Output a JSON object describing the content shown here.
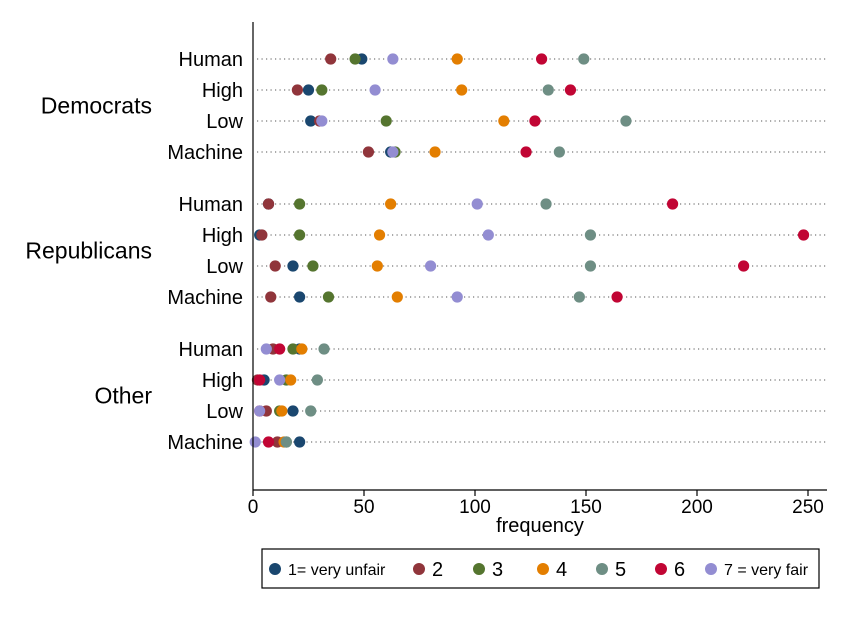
{
  "chart_data": {
    "type": "scatter",
    "subtype": "dot-plot",
    "xlabel": "frequency",
    "xlim": [
      0,
      260
    ],
    "xticks": [
      "0",
      "50",
      "100",
      "150",
      "200",
      "250"
    ],
    "xtick_values": [
      0,
      50,
      100,
      150,
      200,
      250
    ],
    "grid": false,
    "legend_position": "bottom",
    "categories_order": [
      "Human",
      "High",
      "Low",
      "Machine"
    ],
    "series": [
      {
        "name": "1= very unfair",
        "color": "#1a476f"
      },
      {
        "name": "2",
        "color": "#90353b"
      },
      {
        "name": "3",
        "color": "#55752f"
      },
      {
        "name": "4",
        "color": "#e37e00"
      },
      {
        "name": "5",
        "color": "#6e8e84"
      },
      {
        "name": "6",
        "color": "#c10534"
      },
      {
        "name": "7 = very fair",
        "color": "#938dd2"
      }
    ],
    "groups": [
      {
        "label": "Democrats",
        "rows": [
          {
            "label": "Human",
            "values": [
              49,
              35,
              46,
              92,
              149,
              130,
              63
            ]
          },
          {
            "label": "High",
            "values": [
              25,
              20,
              31,
              94,
              133,
              143,
              55
            ]
          },
          {
            "label": "Low",
            "values": [
              26,
              30,
              60,
              113,
              168,
              127,
              31
            ]
          },
          {
            "label": "Machine",
            "values": [
              62,
              52,
              64,
              82,
              138,
              123,
              63
            ]
          }
        ]
      },
      {
        "label": "Republicans",
        "rows": [
          {
            "label": "Human",
            "values": [
              7,
              7,
              21,
              62,
              132,
              189,
              101
            ]
          },
          {
            "label": "High",
            "values": [
              3,
              4,
              21,
              57,
              152,
              248,
              106
            ]
          },
          {
            "label": "Low",
            "values": [
              18,
              10,
              27,
              56,
              152,
              221,
              80
            ]
          },
          {
            "label": "Machine",
            "values": [
              21,
              8,
              34,
              65,
              147,
              164,
              92
            ]
          }
        ]
      },
      {
        "label": "Other",
        "rows": [
          {
            "label": "Human",
            "values": [
              21,
              9,
              18,
              22,
              32,
              12,
              6
            ]
          },
          {
            "label": "High",
            "values": [
              5,
              2,
              15,
              17,
              29,
              3,
              12
            ]
          },
          {
            "label": "Low",
            "values": [
              18,
              6,
              12,
              13,
              26,
              3,
              3
            ]
          },
          {
            "label": "Machine",
            "values": [
              21,
              11,
              15,
              14,
              15,
              7,
              1
            ]
          }
        ]
      }
    ]
  }
}
